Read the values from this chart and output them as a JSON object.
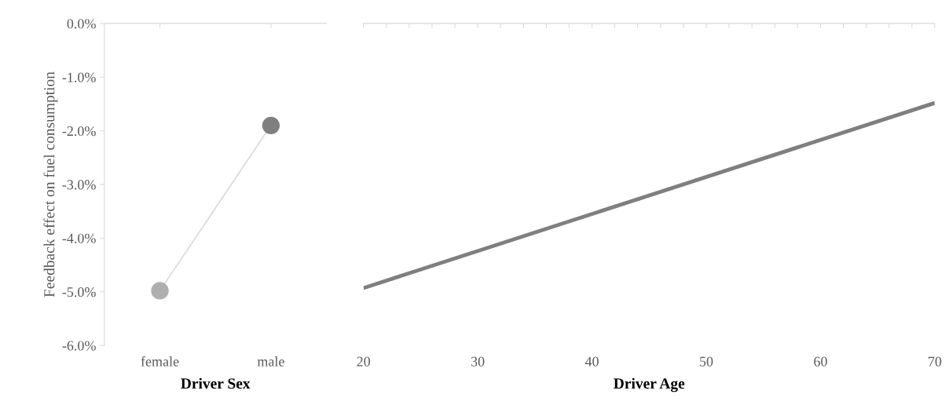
{
  "chart_data": [
    {
      "type": "line",
      "categories": [
        "female",
        "male"
      ],
      "xlabel": "Driver Sex",
      "ylabel": "Feedback effect on fuel consumption",
      "marker": "circle",
      "series": [
        {
          "color": "#d9d9d9",
          "colors": [
            "#b0aeae",
            "#7f7f7f"
          ],
          "values": [
            -4.98,
            -1.9
          ]
        }
      ],
      "ylim": [
        -6,
        0
      ],
      "yticks": [
        {
          "value": -6,
          "label": "-6.0%"
        },
        {
          "value": -5,
          "label": "-5.0%"
        },
        {
          "value": -4,
          "label": "-4.0%"
        },
        {
          "value": -3,
          "label": "-3.0%"
        },
        {
          "value": -2,
          "label": "-2.0%"
        },
        {
          "value": -1,
          "label": "-1.0%"
        },
        {
          "value": 0,
          "label": "0.0%"
        }
      ]
    },
    {
      "type": "line",
      "xlabel": "Driver Age",
      "x": [
        20,
        70
      ],
      "series": [
        {
          "color": "#7f7f7f",
          "values": [
            -4.93,
            -1.48
          ]
        }
      ],
      "xlim": [
        20,
        70
      ],
      "xticks": [
        20,
        {
          "value": 22,
          "label": null
        },
        {
          "value": 24,
          "label": null
        },
        {
          "value": 26,
          "label": null
        },
        {
          "value": 28,
          "label": null
        },
        30,
        {
          "value": 32,
          "label": null
        },
        {
          "value": 34,
          "label": null
        },
        {
          "value": 36,
          "label": null
        },
        {
          "value": 38,
          "label": null
        },
        40,
        {
          "value": 42,
          "label": null
        },
        {
          "value": 44,
          "label": null
        },
        {
          "value": 46,
          "label": null
        },
        {
          "value": 48,
          "label": null
        },
        50,
        {
          "value": 52,
          "label": null
        },
        {
          "value": 54,
          "label": null
        },
        {
          "value": 56,
          "label": null
        },
        {
          "value": 58,
          "label": null
        },
        60,
        {
          "value": 62,
          "label": null
        },
        {
          "value": 64,
          "label": null
        },
        {
          "value": 66,
          "label": null
        },
        {
          "value": 68,
          "label": null
        },
        70
      ],
      "ylim": [
        -6,
        0
      ],
      "tick_labels": "x"
    }
  ]
}
